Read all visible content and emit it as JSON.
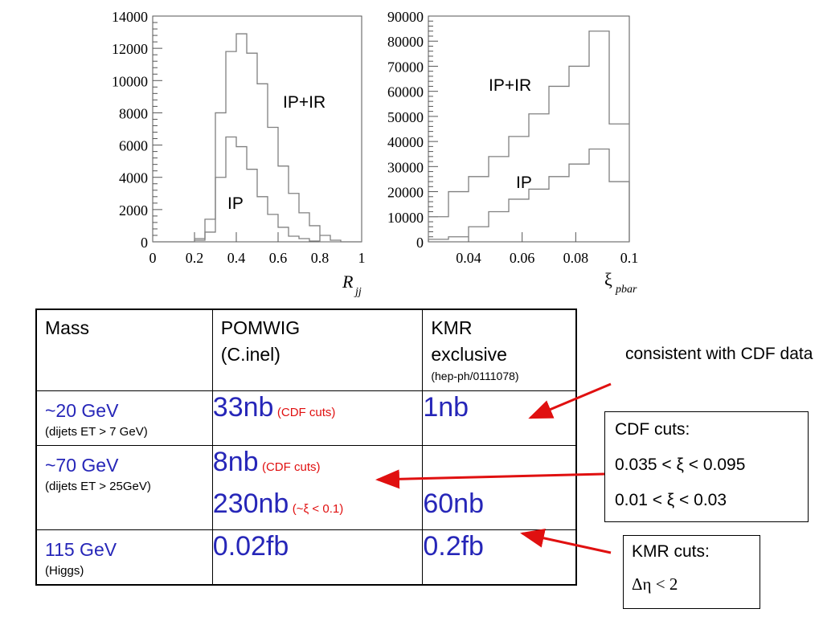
{
  "chart_data": [
    {
      "type": "histogram",
      "xlabel": "R",
      "xlabel_sub": "jj",
      "xlim": [
        0,
        1
      ],
      "ylim": [
        0,
        14000
      ],
      "xticks": [
        "0",
        "0.2",
        "0.4",
        "0.6",
        "0.8",
        "1"
      ],
      "yticks": [
        "0",
        "2000",
        "4000",
        "6000",
        "8000",
        "10000",
        "12000",
        "14000"
      ],
      "bin_edges": [
        0.0,
        0.05,
        0.1,
        0.15,
        0.2,
        0.25,
        0.3,
        0.35,
        0.4,
        0.45,
        0.5,
        0.55,
        0.6,
        0.65,
        0.7,
        0.75,
        0.8,
        0.85,
        0.9,
        0.95,
        1.0
      ],
      "series": [
        {
          "name": "IP+IR",
          "values": [
            0,
            0,
            0,
            0,
            200,
            1400,
            8000,
            11800,
            12900,
            11700,
            9800,
            7100,
            4700,
            3000,
            1800,
            1000,
            400,
            100,
            0,
            0
          ]
        },
        {
          "name": "IP",
          "values": [
            0,
            0,
            0,
            0,
            100,
            600,
            4000,
            6500,
            5900,
            4500,
            2800,
            1700,
            900,
            350,
            200,
            50,
            0,
            0,
            0,
            0
          ]
        }
      ],
      "series_labels": [
        "IP+IR",
        "IP"
      ]
    },
    {
      "type": "histogram",
      "xlabel": "ξ",
      "xlabel_sub": "pbar",
      "xlim": [
        0.025,
        0.1
      ],
      "ylim": [
        0,
        90000
      ],
      "xticks": [
        "0.04",
        "0.06",
        "0.08",
        "0.1"
      ],
      "yticks": [
        "0",
        "10000",
        "20000",
        "30000",
        "40000",
        "50000",
        "60000",
        "70000",
        "80000",
        "90000"
      ],
      "bin_edges": [
        0.025,
        0.0325,
        0.04,
        0.0475,
        0.055,
        0.0625,
        0.07,
        0.0775,
        0.085,
        0.0925,
        0.1
      ],
      "series": [
        {
          "name": "IP+IR",
          "values": [
            10000,
            20000,
            26000,
            34000,
            42000,
            51000,
            62000,
            70000,
            84000,
            47000
          ]
        },
        {
          "name": "IP",
          "values": [
            1000,
            2000,
            6000,
            12000,
            17000,
            21000,
            26000,
            31000,
            37000,
            24000
          ]
        }
      ],
      "series_labels": [
        "IP+IR",
        "IP"
      ]
    }
  ],
  "table": {
    "headers": {
      "mass": "Mass",
      "pomwig": "POMWIG",
      "pomwig_sub": "(C.inel)",
      "kmr": "KMR exclusive",
      "kmr_sub": "(hep-ph/0111078)"
    },
    "rows": [
      {
        "mass": "~20 GeV",
        "mass_sub": "(dijets ET > 7 GeV)",
        "pomwig": "33nb",
        "pomwig_note": "(CDF cuts)",
        "kmr": "1nb"
      },
      {
        "mass": "~70 GeV",
        "mass_sub": "(dijets ET > 25GeV)",
        "pomwig": "8nb",
        "pomwig_note": "(CDF cuts)",
        "pomwig2": "230nb",
        "pomwig2_note": "(~ξ < 0.1)",
        "kmr": "",
        "kmr2": "60nb"
      },
      {
        "mass": "115 GeV",
        "mass_sub": "(Higgs)",
        "pomwig": "0.02fb",
        "kmr": "0.2fb"
      }
    ]
  },
  "annotations": {
    "cdf_note": "consistent with CDF data",
    "cdf_box": {
      "title": "CDF cuts:",
      "line1": "0.035 < ξ < 0.095",
      "line2": "0.01 < ξ < 0.03"
    },
    "kmr_box": {
      "title": "KMR cuts:",
      "line1": "Δη < 2"
    }
  },
  "colors": {
    "value_text": "#2626b8",
    "note_red": "#e01010",
    "arrow": "#e01010",
    "hist_line": "#808080"
  }
}
